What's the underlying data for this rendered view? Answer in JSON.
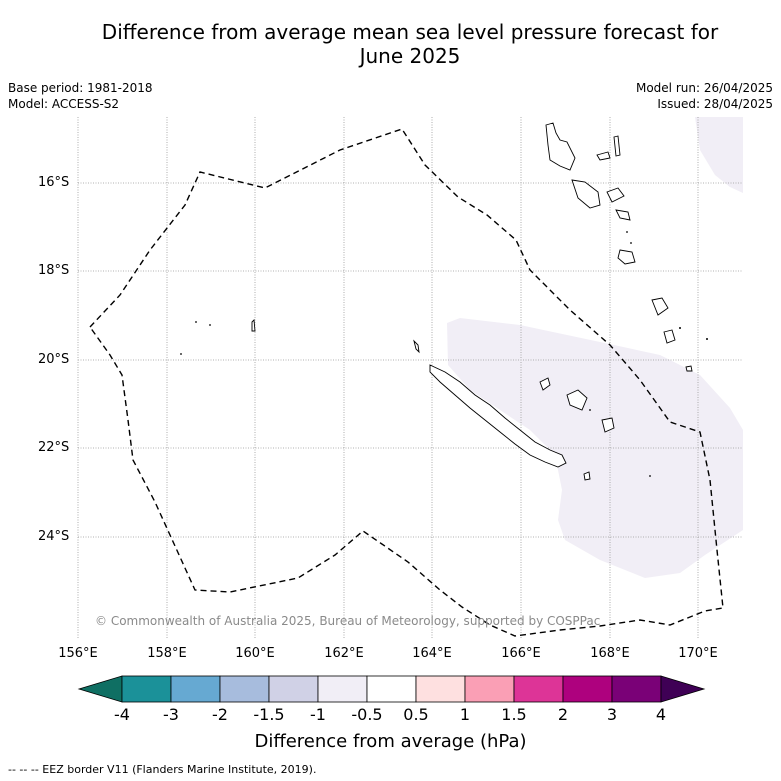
{
  "title_line1": "Difference from average mean sea level pressure forecast for",
  "title_line2": "June 2025",
  "base_period": "Base period: 1981-2018",
  "model": "Model: ACCESS-S2",
  "model_run": "Model run: 26/04/2025",
  "issued": "Issued: 28/04/2025",
  "lat_labels": [
    "16°S",
    "18°S",
    "20°S",
    "22°S",
    "24°S"
  ],
  "lon_labels": [
    "156°E",
    "158°E",
    "160°E",
    "162°E",
    "164°E",
    "166°E",
    "168°E",
    "170°E"
  ],
  "copyright": "© Commonwealth of Australia 2025, Bureau of Meteorology, supported by COSPPac",
  "colorbar": {
    "ticks": [
      "-4",
      "-3",
      "-2",
      "-1.5",
      "-1",
      "-0.5",
      "0.5",
      "1",
      "1.5",
      "2",
      "3",
      "4"
    ],
    "colors": [
      "#1b9199",
      "#66a9d2",
      "#a7bcdd",
      "#d0d1e6",
      "#f1eef6",
      "#ffffff",
      "#fee0e0",
      "#fa9fb5",
      "#dd3497",
      "#ae017e",
      "#7a0177"
    ],
    "under_color": "#0f6f63",
    "over_color": "#3f0055",
    "label": "Difference from average (hPa)"
  },
  "footer": "--  --  -- EEZ border V11 (Flanders Marine Institute, 2019)."
}
